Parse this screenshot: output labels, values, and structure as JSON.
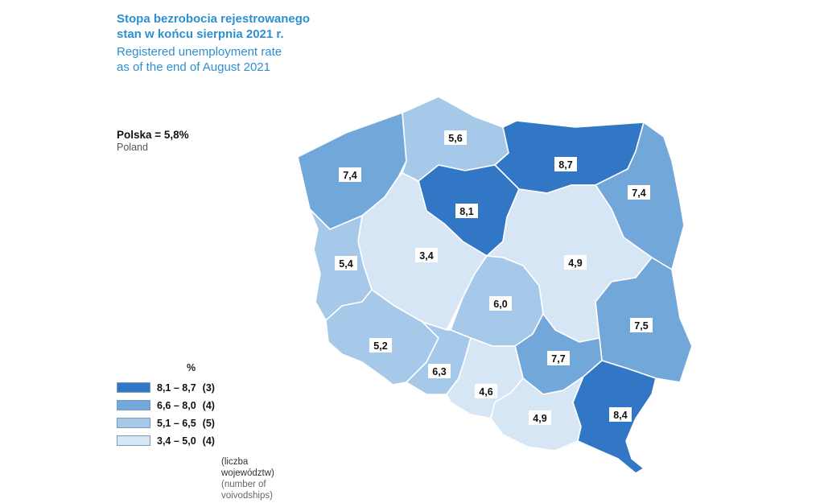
{
  "title": {
    "pl_line1": "Stopa bezrobocia rejestrowanego",
    "pl_line2": "stan w końcu sierpnia 2021 r.",
    "en_line1": "Registered unemployment rate",
    "en_line2": "as of the end of August 2021"
  },
  "national": {
    "main": "Polska = 5,8%",
    "sub": "Poland"
  },
  "colors": {
    "class1": "#3277c6",
    "class2": "#72a7da",
    "class3": "#a6c8e9",
    "class4": "#d6e6f5"
  },
  "voivodships": [
    {
      "value": "7,4",
      "class": 2
    },
    {
      "value": "5,6",
      "class": 3
    },
    {
      "value": "8,7",
      "class": 1
    },
    {
      "value": "7,4",
      "class": 2
    },
    {
      "value": "8,1",
      "class": 1
    },
    {
      "value": "3,4",
      "class": 4
    },
    {
      "value": "4,9",
      "class": 4
    },
    {
      "value": "5,4",
      "class": 3
    },
    {
      "value": "6,0",
      "class": 3
    },
    {
      "value": "7,5",
      "class": 2
    },
    {
      "value": "5,2",
      "class": 3
    },
    {
      "value": "6,3",
      "class": 3
    },
    {
      "value": "7,7",
      "class": 2
    },
    {
      "value": "4,6",
      "class": 4
    },
    {
      "value": "4,9",
      "class": 4
    },
    {
      "value": "8,4",
      "class": 1
    }
  ],
  "legend": {
    "unit": "%",
    "items": [
      {
        "range": "8,1 – 8,7",
        "count": "(3)",
        "class": 1
      },
      {
        "range": "6,6 – 8,0",
        "count": "(4)",
        "class": 2
      },
      {
        "range": "5,1 – 6,5",
        "count": "(5)",
        "class": 3
      },
      {
        "range": "3,4 – 5,0",
        "count": "(4)",
        "class": 4
      }
    ],
    "note_pl": "(liczba województw)",
    "note_en": "(number of voivodships)"
  }
}
